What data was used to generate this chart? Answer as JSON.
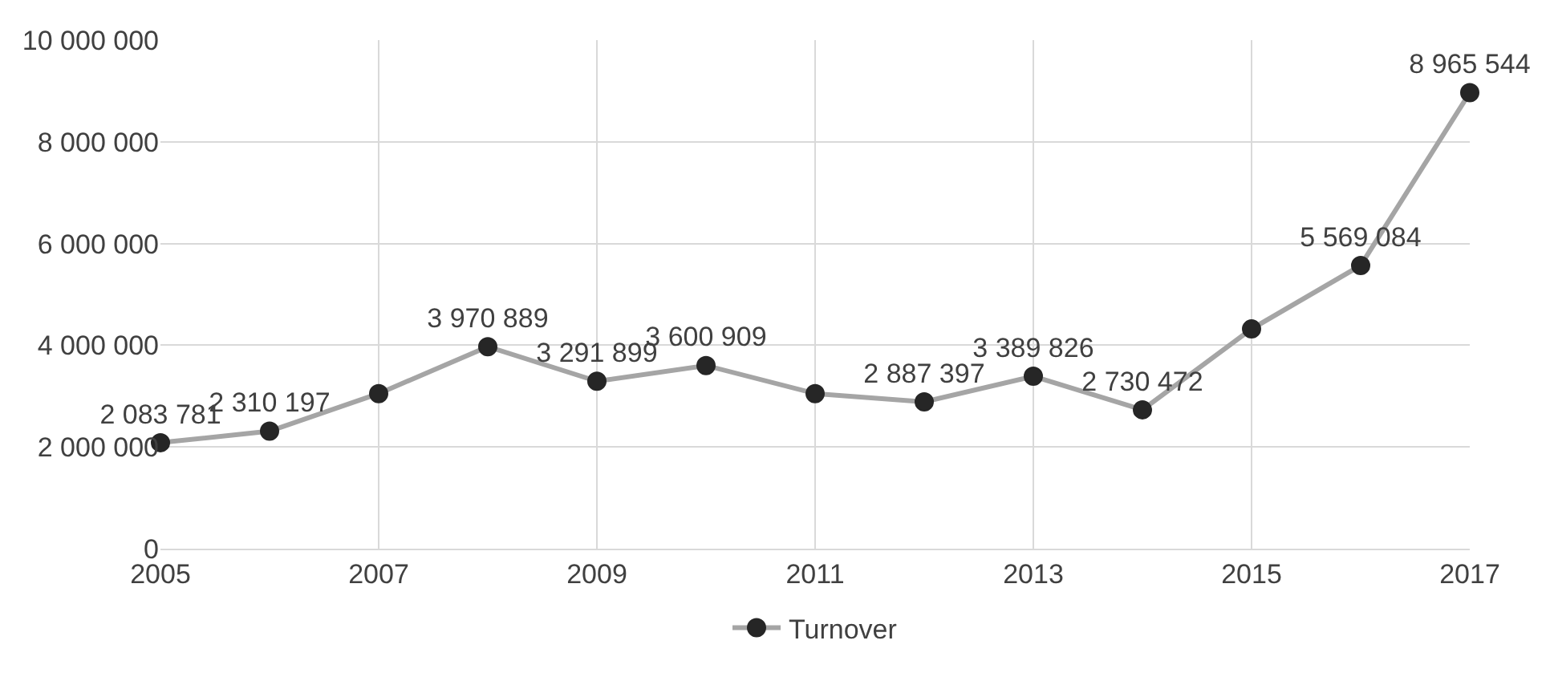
{
  "chart_data": {
    "type": "line",
    "x": [
      2005,
      2006,
      2007,
      2008,
      2009,
      2010,
      2011,
      2012,
      2013,
      2014,
      2015,
      2016,
      2017
    ],
    "series": [
      {
        "name": "Turnover",
        "color": "#a5a5a5",
        "values": [
          2083781,
          2310197,
          3050000,
          3970889,
          3291899,
          3600909,
          3050000,
          2887397,
          3389826,
          2730472,
          4320000,
          5569084,
          8965544
        ],
        "value_labels": [
          "2 083 781",
          "2 310 197",
          null,
          "3 970 889",
          "3 291 899",
          "3 600 909",
          null,
          "2 887 397",
          "3 389 826",
          "2 730 472",
          null,
          "5 569 084",
          "8 965 544"
        ]
      }
    ],
    "xlim": [
      2005,
      2017
    ],
    "xticks": [
      2005,
      2007,
      2009,
      2011,
      2013,
      2015,
      2017
    ],
    "ylim": [
      0,
      10000000
    ],
    "yticks": [
      {
        "value": 0,
        "label": "0"
      },
      {
        "value": 2000000,
        "label": "2 000 000"
      },
      {
        "value": 4000000,
        "label": "4 000 000"
      },
      {
        "value": 6000000,
        "label": "6 000 000"
      },
      {
        "value": 8000000,
        "label": "8 000 000"
      },
      {
        "value": 10000000,
        "label": "10 000 000"
      }
    ],
    "grid": true,
    "legend": "bottom",
    "marker": "circle",
    "line_style": "solid"
  }
}
